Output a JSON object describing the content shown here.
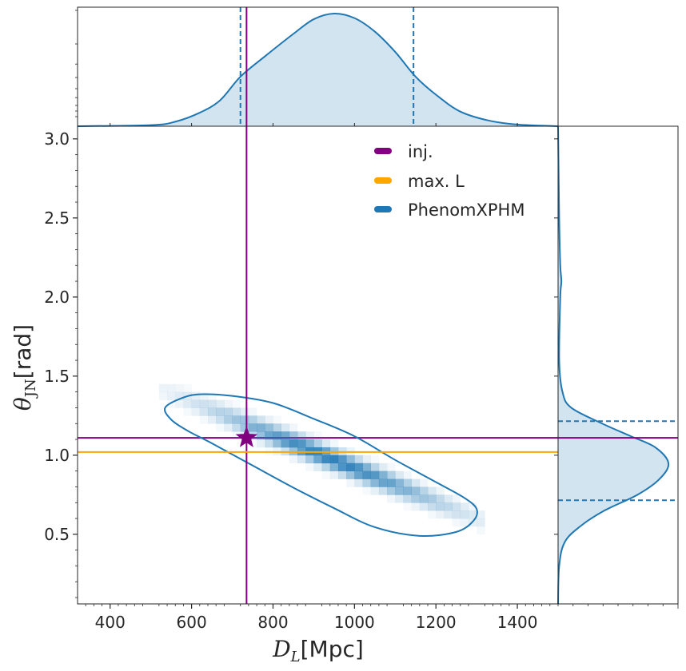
{
  "chart_data": {
    "type": "corner",
    "x_axis": {
      "label_symbol": "D",
      "label_subscript": "L",
      "label_unit": "[Mpc]",
      "range": [
        320,
        1500
      ],
      "ticks": [
        400,
        600,
        800,
        1000,
        1200,
        1400
      ],
      "tick_labels": [
        "400",
        "600",
        "800",
        "1000",
        "1200",
        "1400"
      ]
    },
    "y_axis": {
      "label_symbol": "θ",
      "label_subscript": "JN",
      "label_unit": "[rad]",
      "range": [
        0.06,
        3.08
      ],
      "ticks": [
        0.5,
        1.0,
        1.5,
        2.0,
        2.5,
        3.0
      ],
      "tick_labels": [
        "0.5",
        "1.0",
        "1.5",
        "2.0",
        "2.5",
        "3.0"
      ]
    },
    "injection": {
      "D_L": 735,
      "theta_JN": 1.11,
      "color": "#800080"
    },
    "max_likelihood": {
      "theta_JN": 1.02,
      "color": "#FFA500"
    },
    "posterior_color": "#1f77b4",
    "x_marginal": {
      "ci": [
        720,
        1145
      ],
      "density": [
        [
          320,
          0.0
        ],
        [
          500,
          0.01
        ],
        [
          560,
          0.04
        ],
        [
          620,
          0.12
        ],
        [
          670,
          0.23
        ],
        [
          720,
          0.44
        ],
        [
          780,
          0.62
        ],
        [
          850,
          0.82
        ],
        [
          900,
          0.95
        ],
        [
          950,
          1.0
        ],
        [
          1000,
          0.96
        ],
        [
          1050,
          0.84
        ],
        [
          1100,
          0.66
        ],
        [
          1150,
          0.44
        ],
        [
          1200,
          0.28
        ],
        [
          1260,
          0.13
        ],
        [
          1330,
          0.05
        ],
        [
          1400,
          0.015
        ],
        [
          1500,
          0.0
        ]
      ]
    },
    "y_marginal": {
      "ci": [
        0.715,
        1.215
      ],
      "density": [
        [
          0.06,
          0.0
        ],
        [
          0.3,
          0.01
        ],
        [
          0.45,
          0.06
        ],
        [
          0.55,
          0.2
        ],
        [
          0.65,
          0.42
        ],
        [
          0.75,
          0.72
        ],
        [
          0.85,
          0.92
        ],
        [
          0.95,
          1.0
        ],
        [
          1.05,
          0.88
        ],
        [
          1.12,
          0.66
        ],
        [
          1.2,
          0.4
        ],
        [
          1.3,
          0.12
        ],
        [
          1.4,
          0.04
        ],
        [
          1.6,
          0.01
        ],
        [
          2.0,
          0.02
        ],
        [
          2.1,
          0.03
        ],
        [
          2.2,
          0.02
        ],
        [
          2.5,
          0.01
        ],
        [
          3.08,
          0.0
        ]
      ]
    },
    "contour_90": [
      [
        535,
        1.3
      ],
      [
        575,
        1.36
      ],
      [
        620,
        1.385
      ],
      [
        700,
        1.375
      ],
      [
        800,
        1.33
      ],
      [
        900,
        1.23
      ],
      [
        1000,
        1.12
      ],
      [
        1100,
        0.97
      ],
      [
        1200,
        0.83
      ],
      [
        1270,
        0.73
      ],
      [
        1300,
        0.66
      ],
      [
        1292,
        0.585
      ],
      [
        1250,
        0.515
      ],
      [
        1160,
        0.49
      ],
      [
        1050,
        0.545
      ],
      [
        950,
        0.665
      ],
      [
        850,
        0.795
      ],
      [
        750,
        0.935
      ],
      [
        650,
        1.075
      ],
      [
        590,
        1.155
      ],
      [
        550,
        1.225
      ]
    ],
    "heatmap": {
      "center_D_L": 940,
      "center_theta": 0.98,
      "sigma_u": 190,
      "sigma_v": 0.045,
      "slope": -0.00105,
      "bin_dx": 20,
      "bin_dy": 0.05
    },
    "legend": {
      "location": "upper right",
      "entries": [
        {
          "label": "inj.",
          "color": "#800080"
        },
        {
          "label": "max. L",
          "color": "#FFA500"
        },
        {
          "label": "PhenomXPHM",
          "color": "#1f77b4"
        }
      ]
    }
  }
}
